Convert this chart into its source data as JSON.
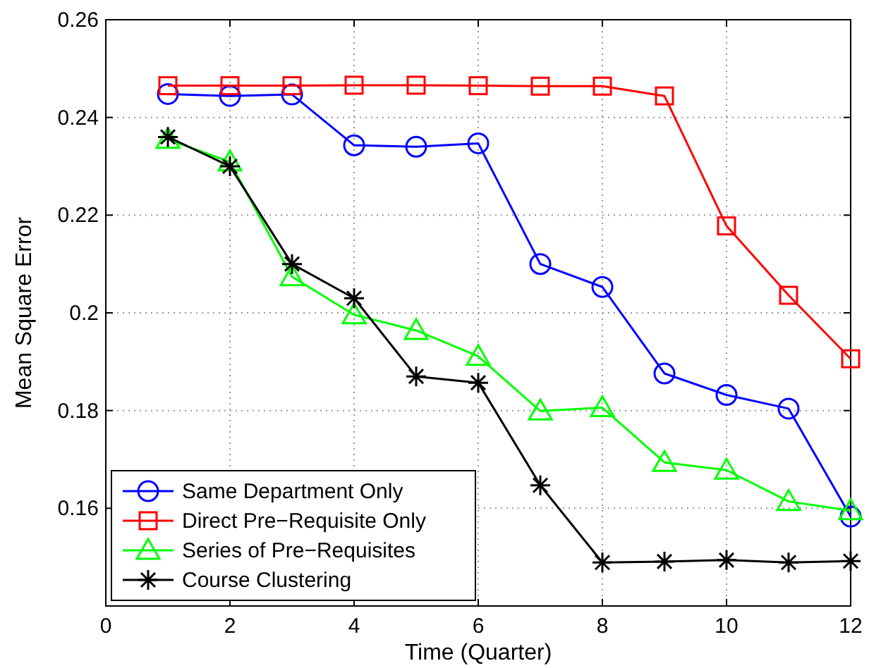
{
  "chart_data": {
    "type": "line",
    "xlabel": "Time (Quarter)",
    "ylabel": "Mean Square Error",
    "x": [
      1,
      2,
      3,
      4,
      5,
      6,
      7,
      8,
      9,
      10,
      11,
      12
    ],
    "xlim": [
      0,
      12
    ],
    "xticks": [
      0,
      2,
      4,
      6,
      8,
      10,
      12
    ],
    "ylim": [
      0.14,
      0.26
    ],
    "yticks": [
      {
        "value": 0.14,
        "label": null
      },
      {
        "value": 0.16,
        "label": "0.16"
      },
      {
        "value": 0.18,
        "label": "0.18"
      },
      {
        "value": 0.2,
        "label": "0.2"
      },
      {
        "value": 0.22,
        "label": "0.22"
      },
      {
        "value": 0.24,
        "label": "0.24"
      },
      {
        "value": 0.26,
        "label": "0.26"
      }
    ],
    "grid": true,
    "legend": "bottom left",
    "line_style": "solid",
    "series": [
      {
        "name": "Same Department Only",
        "color": "#0000ff",
        "marker": "circle",
        "values": [
          0.2448,
          0.2444,
          0.2447,
          0.2343,
          0.234,
          0.2347,
          0.21,
          0.2053,
          0.1876,
          0.1832,
          0.1804,
          0.1583
        ]
      },
      {
        "name": "Direct Pre−Requisite Only",
        "color": "#ff0000",
        "marker": "square",
        "values": [
          0.2465,
          0.2465,
          0.2465,
          0.2466,
          0.2466,
          0.2465,
          0.2464,
          0.2464,
          0.2444,
          0.2178,
          0.2036,
          0.1906
        ]
      },
      {
        "name": "Series of Pre−Requisites",
        "color": "#00ff00",
        "marker": "triangle",
        "values": [
          0.2355,
          0.2309,
          0.2074,
          0.1996,
          0.1964,
          0.1911,
          0.1799,
          0.1806,
          0.1694,
          0.1678,
          0.1614,
          0.1595
        ]
      },
      {
        "name": "Course Clustering",
        "color": "#000000",
        "marker": "cross",
        "values": [
          0.236,
          0.23,
          0.21,
          0.203,
          0.187,
          0.1857,
          0.1647,
          0.1489,
          0.1491,
          0.1494,
          0.1489,
          0.1492
        ]
      }
    ]
  }
}
